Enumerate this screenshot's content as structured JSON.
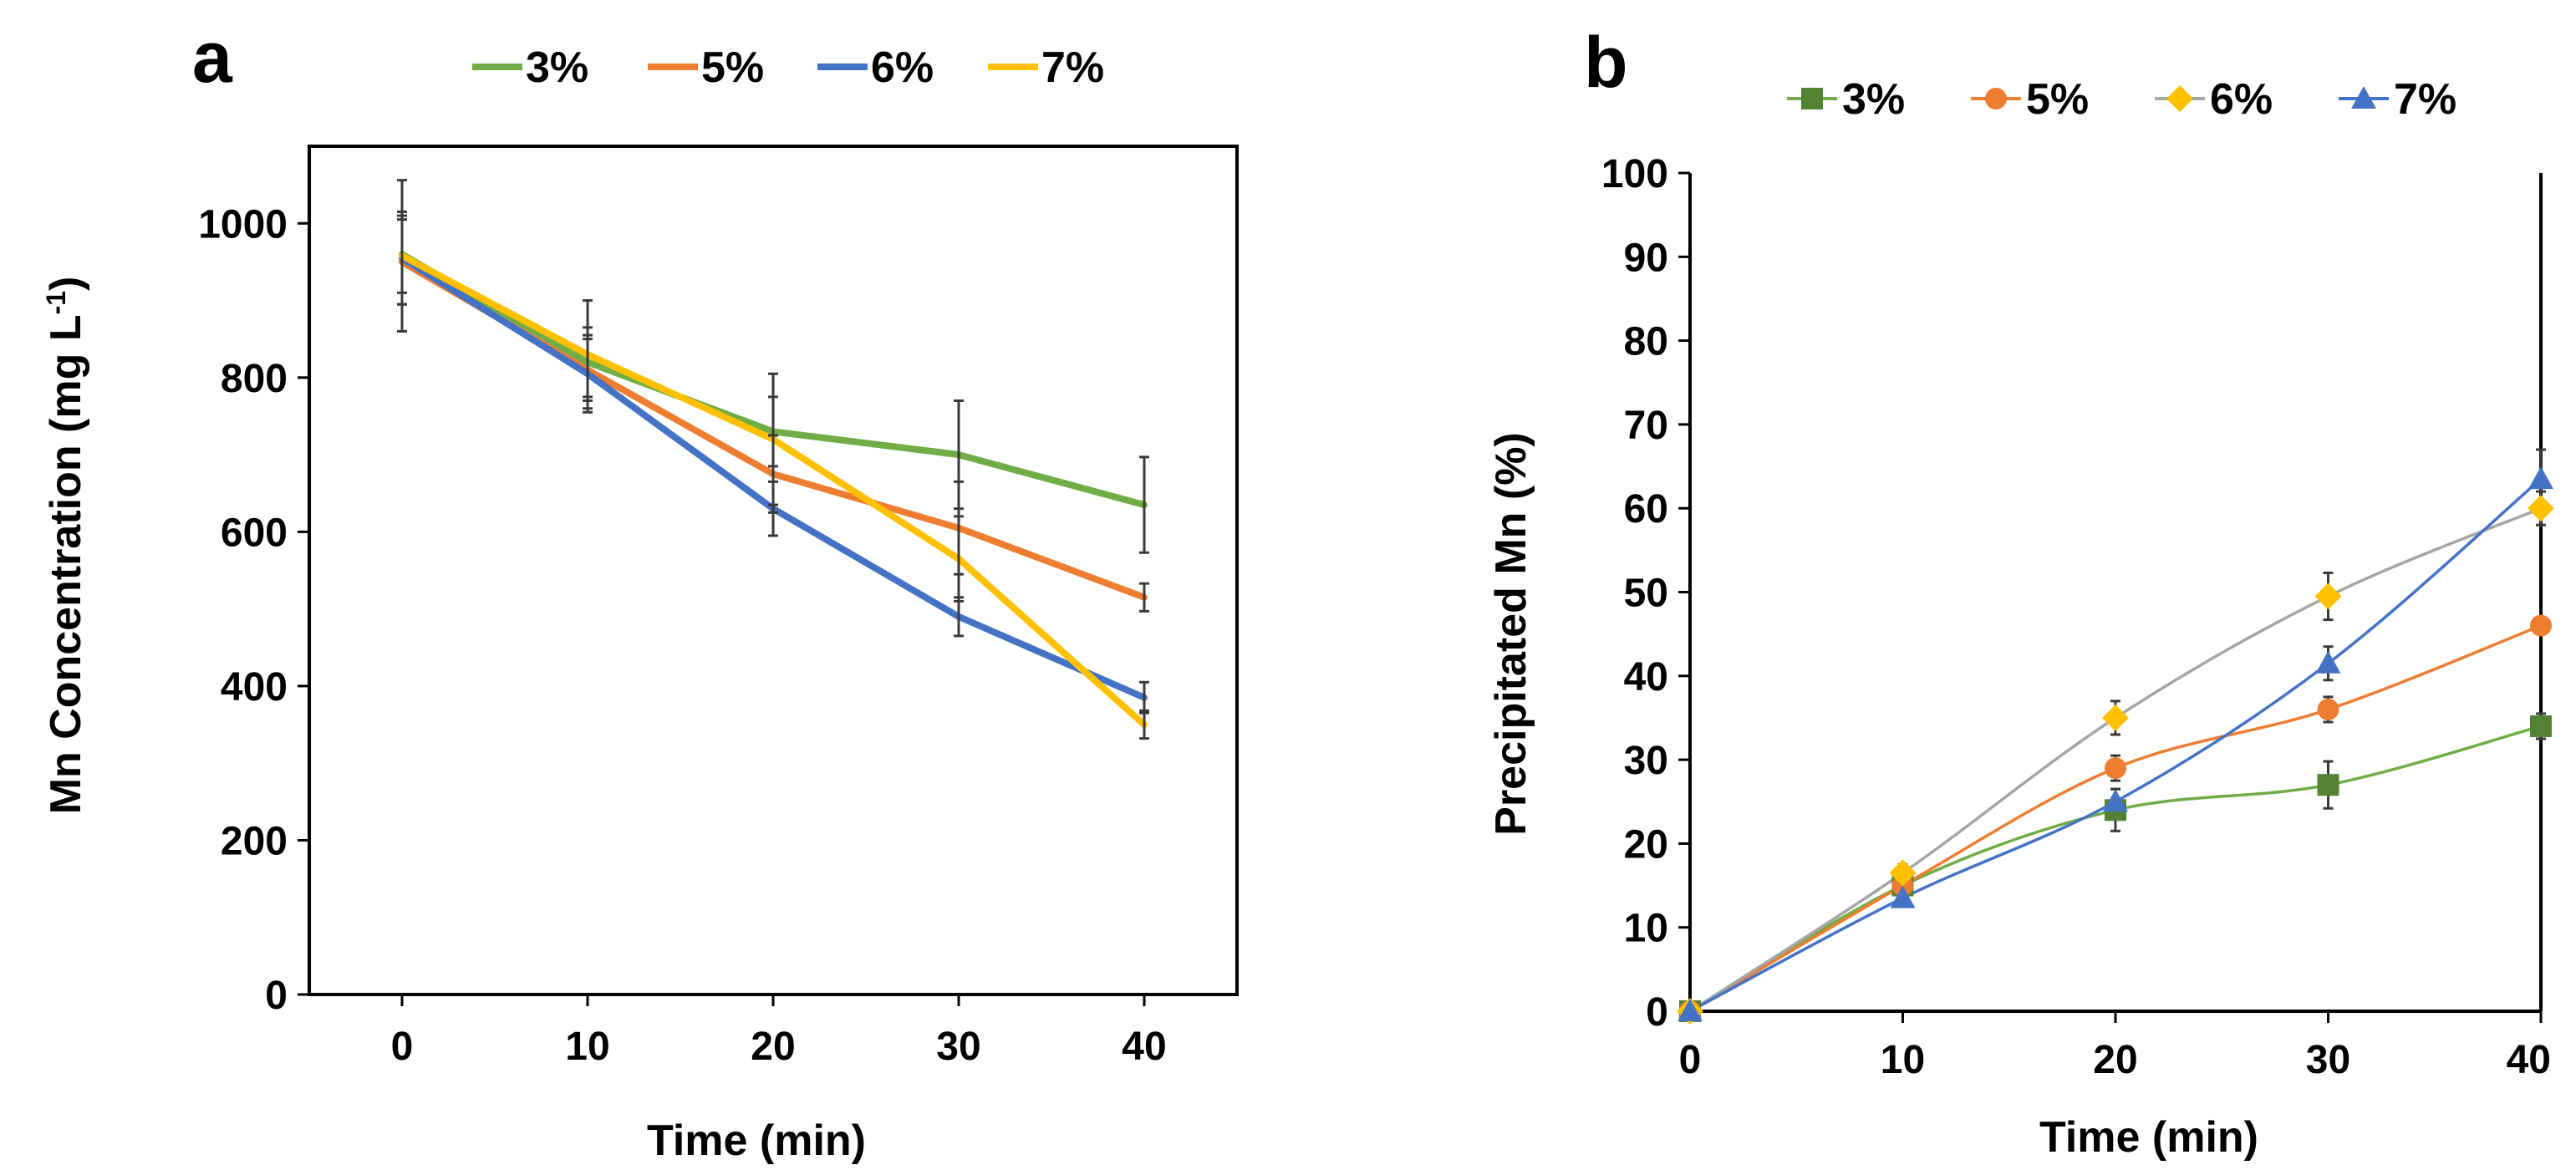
{
  "chart_data": [
    {
      "panel_label": "a",
      "type": "line",
      "xlabel": "Time (min)",
      "ylabel_main": "Mn Concentration (mg L",
      "ylabel_sup": "-1",
      "ylabel_close": ")",
      "xlim": [
        -5,
        45
      ],
      "ylim": [
        0,
        1100
      ],
      "xticks": [
        0,
        10,
        20,
        30,
        40
      ],
      "yticks": [
        0,
        200,
        400,
        600,
        800,
        1000
      ],
      "x": [
        0,
        10,
        20,
        30,
        40
      ],
      "legend_position": "top",
      "series": [
        {
          "name": "3%",
          "color": "#70ad47",
          "marker": "none",
          "values": [
            960,
            820,
            730,
            700,
            635
          ],
          "errors": [
            50,
            45,
            45,
            70,
            62
          ]
        },
        {
          "name": "5%",
          "color": "#ed7d31",
          "marker": "none",
          "values": [
            950,
            810,
            675,
            605,
            515
          ],
          "errors": [
            55,
            40,
            50,
            60,
            18
          ]
        },
        {
          "name": "6%",
          "color": "#4472c4",
          "marker": "none",
          "values": [
            955,
            805,
            630,
            490,
            385
          ],
          "errors": [
            60,
            50,
            35,
            25,
            20
          ]
        },
        {
          "name": "7%",
          "color": "#ffc000",
          "marker": "none",
          "values": [
            958,
            830,
            720,
            565,
            350
          ],
          "errors": [
            98,
            70,
            85,
            55,
            18
          ]
        }
      ]
    },
    {
      "panel_label": "b",
      "type": "line",
      "xlabel": "Time (min)",
      "ylabel": "Precipitated Mn (%)",
      "xlim": [
        0,
        40
      ],
      "ylim": [
        0,
        100
      ],
      "xticks": [
        0,
        10,
        20,
        30,
        40
      ],
      "yticks": [
        0,
        10,
        20,
        30,
        40,
        50,
        60,
        70,
        80,
        90,
        100
      ],
      "x": [
        0,
        10,
        20,
        30,
        40
      ],
      "legend_position": "top",
      "series": [
        {
          "name": "3%",
          "color": "#70ad47",
          "marker": "square",
          "marker_color": "#548235",
          "values": [
            0,
            15,
            24,
            27,
            34
          ],
          "errors": [
            0,
            1.0,
            2.5,
            2.8,
            1.5
          ]
        },
        {
          "name": "5%",
          "color": "#ed7d31",
          "marker": "circle",
          "marker_color": "#ed7d31",
          "values": [
            0,
            15,
            29,
            36,
            46
          ],
          "errors": [
            0,
            1.0,
            1.5,
            1.5,
            0.8
          ]
        },
        {
          "name": "6%",
          "color": "#a5a5a5",
          "marker": "diamond",
          "marker_color": "#ffc000",
          "values": [
            0,
            16.5,
            35,
            49.5,
            60
          ],
          "errors": [
            0,
            1.0,
            2.0,
            2.8,
            2.0
          ]
        },
        {
          "name": "7%",
          "color": "#4472c4",
          "marker": "triangle",
          "marker_color": "#4472c4",
          "values": [
            0,
            13.5,
            25,
            41.5,
            63.5
          ],
          "errors": [
            0,
            0.8,
            1.5,
            2.0,
            3.5
          ]
        }
      ]
    }
  ]
}
